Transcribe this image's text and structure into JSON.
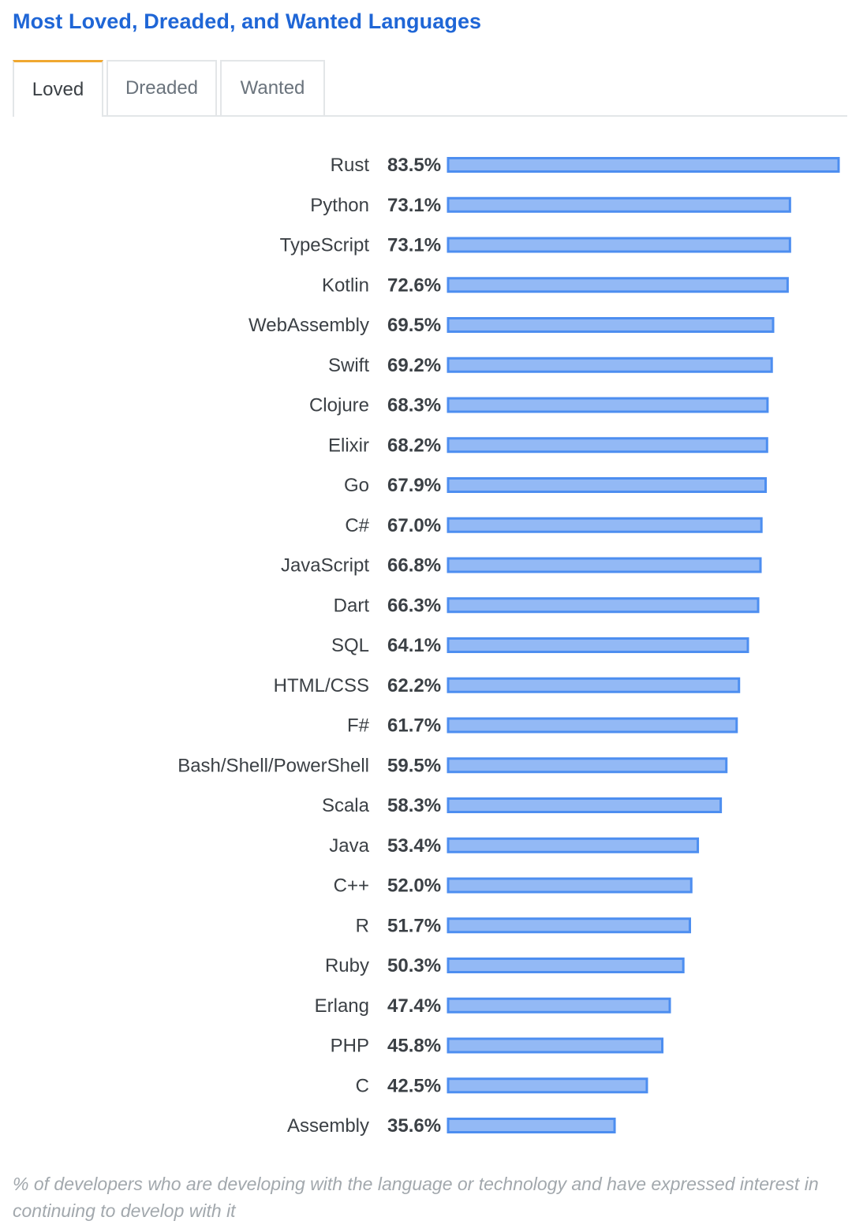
{
  "title": "Most Loved, Dreaded, and Wanted Languages",
  "tabs": [
    {
      "label": "Loved",
      "active": true
    },
    {
      "label": "Dreaded",
      "active": false
    },
    {
      "label": "Wanted",
      "active": false
    }
  ],
  "colors": {
    "title": "#1f66d6",
    "bar_fill": "#93b9f5",
    "bar_border": "#4d8ef0",
    "active_tab_accent": "#f0a830"
  },
  "chart_data": {
    "type": "bar",
    "orientation": "horizontal",
    "categories": [
      "Rust",
      "Python",
      "TypeScript",
      "Kotlin",
      "WebAssembly",
      "Swift",
      "Clojure",
      "Elixir",
      "Go",
      "C#",
      "JavaScript",
      "Dart",
      "SQL",
      "HTML/CSS",
      "F#",
      "Bash/Shell/PowerShell",
      "Scala",
      "Java",
      "C++",
      "R",
      "Ruby",
      "Erlang",
      "PHP",
      "C",
      "Assembly"
    ],
    "values": [
      83.5,
      73.1,
      73.1,
      72.6,
      69.5,
      69.2,
      68.3,
      68.2,
      67.9,
      67.0,
      66.8,
      66.3,
      64.1,
      62.2,
      61.7,
      59.5,
      58.3,
      53.4,
      52.0,
      51.7,
      50.3,
      47.4,
      45.8,
      42.5,
      35.6
    ],
    "value_labels": [
      "83.5%",
      "73.1%",
      "73.1%",
      "72.6%",
      "69.5%",
      "69.2%",
      "68.3%",
      "68.2%",
      "67.9%",
      "67.0%",
      "66.8%",
      "66.3%",
      "64.1%",
      "62.2%",
      "61.7%",
      "59.5%",
      "58.3%",
      "53.4%",
      "52.0%",
      "51.7%",
      "50.3%",
      "47.4%",
      "45.8%",
      "42.5%",
      "35.6%"
    ],
    "unit": "%",
    "xlim": [
      0,
      83.5
    ],
    "grid": false,
    "legend": "none"
  },
  "footnote": "% of developers who are developing with the language or technology and have expressed interest in continuing to develop with it"
}
